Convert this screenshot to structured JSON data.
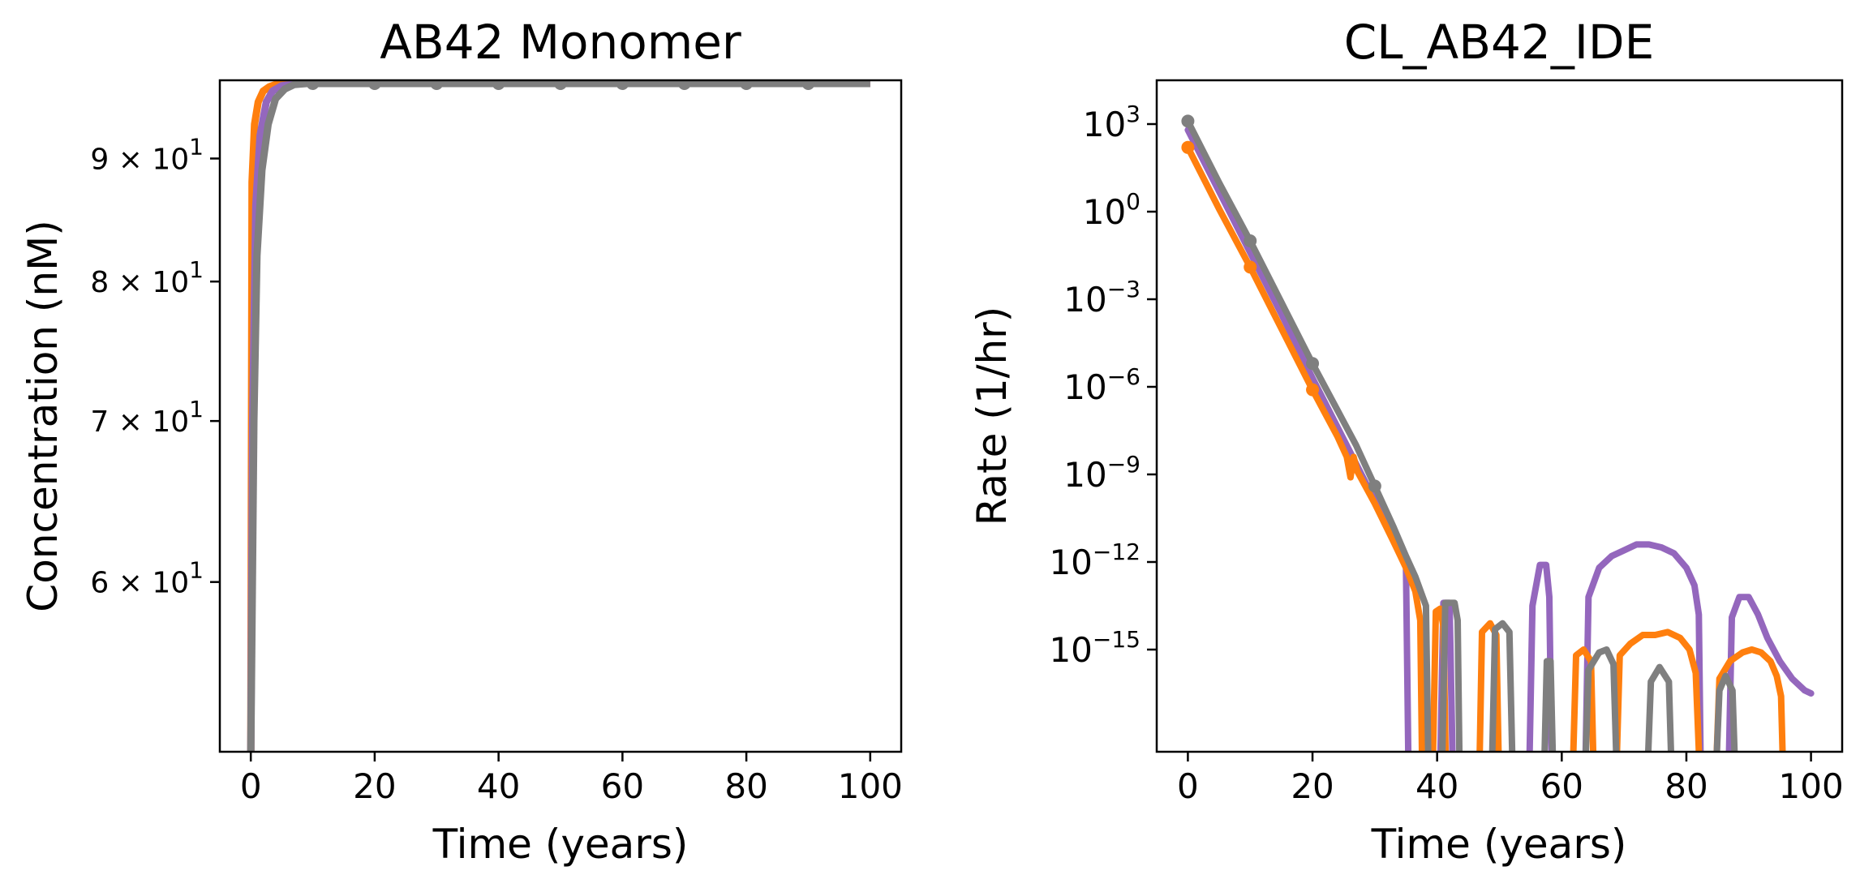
{
  "chart_data": [
    {
      "type": "line",
      "title": "AB42 Monomer",
      "xlabel": "Time (years)",
      "ylabel": "Concentration (nM)",
      "yscale": "log",
      "xlim": [
        -5,
        105
      ],
      "ylim": [
        51,
        97
      ],
      "grid": false,
      "xticks": [
        0,
        20,
        40,
        60,
        80,
        100
      ],
      "xtick_labels": [
        "0",
        "20",
        "40",
        "60",
        "80",
        "100"
      ],
      "yticks": [
        60,
        70,
        80,
        90
      ],
      "ytick_labels": [
        {
          "base": "6 × 10",
          "exp": "1"
        },
        {
          "base": "7 × 10",
          "exp": "1"
        },
        {
          "base": "8 × 10",
          "exp": "1"
        },
        {
          "base": "9 × 10",
          "exp": "1"
        }
      ],
      "series": [
        {
          "color": "#ff7f0e",
          "x": [
            0,
            0.2,
            0.6,
            1.2,
            2,
            3,
            4,
            5,
            6,
            100
          ],
          "y": [
            51,
            88,
            93,
            95,
            96,
            96.4,
            96.6,
            96.7,
            96.7,
            96.7
          ]
        },
        {
          "color": "#9467bd",
          "x": [
            0,
            0.3,
            0.8,
            1.5,
            2.5,
            3.5,
            5,
            6.5,
            8,
            100
          ],
          "y": [
            51,
            70,
            86,
            92,
            95,
            96,
            96.5,
            96.6,
            96.7,
            96.7
          ]
        },
        {
          "color": "#7f7f7f",
          "markers": [
            10,
            20,
            30,
            40,
            50,
            60,
            70,
            80,
            90
          ],
          "x": [
            0,
            0.5,
            1,
            1.8,
            2.8,
            4,
            5.5,
            7,
            9,
            100
          ],
          "y": [
            51,
            70,
            82,
            89,
            93,
            95.3,
            96.2,
            96.6,
            96.7,
            96.7
          ]
        }
      ]
    },
    {
      "type": "line",
      "title": "CL_AB42_IDE",
      "xlabel": "Time (years)",
      "ylabel": "Rate (1/hr)",
      "yscale": "log",
      "xlim": [
        -5,
        105
      ],
      "ylim_log10": [
        -18.5,
        4.5
      ],
      "grid": false,
      "xticks": [
        0,
        20,
        40,
        60,
        80,
        100
      ],
      "xtick_labels": [
        "0",
        "20",
        "40",
        "60",
        "80",
        "100"
      ],
      "yticks_log10": [
        3,
        0,
        -3,
        -6,
        -9,
        -12,
        -15
      ],
      "ytick_labels": [
        {
          "base": "10",
          "exp": "3"
        },
        {
          "base": "10",
          "exp": "0"
        },
        {
          "base": "10",
          "exp": "−3"
        },
        {
          "base": "10",
          "exp": "−6"
        },
        {
          "base": "10",
          "exp": "−9"
        },
        {
          "base": "10",
          "exp": "−12"
        },
        {
          "base": "10",
          "exp": "−15"
        }
      ],
      "series": [
        {
          "color": "#9467bd",
          "segments": [
            {
              "x": [
                0,
                5,
                10,
                15,
                20,
                25,
                30,
                33,
                35,
                35.4
              ],
              "log10y": [
                2.8,
                0.7,
                -1.4,
                -3.5,
                -5.7,
                -7.8,
                -9.9,
                -11.2,
                -12.2,
                -19
              ]
            },
            {
              "x": [
                40.5,
                41,
                42,
                42.5
              ],
              "log10y": [
                -19,
                -13.4,
                -13.4,
                -19
              ]
            },
            {
              "x": [
                54.8,
                55.3,
                56.5,
                57.5,
                58,
                58.4
              ],
              "log10y": [
                -19,
                -13.5,
                -12.1,
                -12.1,
                -13.2,
                -19
              ]
            },
            {
              "x": [
                63.8,
                64.3,
                66,
                68,
                70,
                72,
                74,
                76,
                78,
                80,
                81.3,
                82,
                82.3
              ],
              "log10y": [
                -19,
                -13.2,
                -12.2,
                -11.8,
                -11.6,
                -11.4,
                -11.4,
                -11.5,
                -11.7,
                -12.2,
                -12.8,
                -13.8,
                -19
              ]
            },
            {
              "x": [
                86.8,
                87.3,
                88.5,
                90,
                91.5,
                93,
                95,
                97,
                99,
                100
              ],
              "log10y": [
                -19,
                -13.9,
                -13.2,
                -13.2,
                -13.8,
                -14.6,
                -15.4,
                -16,
                -16.4,
                -16.5
              ]
            }
          ]
        },
        {
          "color": "#ff7f0e",
          "markers": [
            0,
            10,
            20
          ],
          "segments": [
            {
              "x": [
                0,
                5,
                10,
                15,
                20,
                24,
                25.5,
                26.1,
                26.6,
                27.2,
                30,
                33,
                35,
                36.5,
                37.3,
                37.6
              ],
              "log10y": [
                2.2,
                0.1,
                -1.9,
                -4,
                -6.1,
                -7.7,
                -8.4,
                -9.1,
                -8.4,
                -8.9,
                -10,
                -11.3,
                -12.2,
                -13,
                -14,
                -19
              ]
            },
            {
              "x": [
                39.3,
                39.8,
                40.5,
                41,
                41.4
              ],
              "log10y": [
                -19,
                -13.7,
                -13.6,
                -14.2,
                -19
              ]
            },
            {
              "x": [
                46.8,
                47.2,
                48.5,
                49.5,
                49.9
              ],
              "log10y": [
                -19,
                -14.4,
                -14.1,
                -14.5,
                -19
              ]
            },
            {
              "x": [
                61.8,
                62.3,
                63.5,
                64.7,
                65.1
              ],
              "log10y": [
                -19,
                -15.2,
                -15,
                -15.4,
                -19
              ]
            },
            {
              "x": [
                68.8,
                69.3,
                71,
                73,
                75,
                77,
                79,
                80.5,
                81.5,
                82.1
              ],
              "log10y": [
                -19,
                -15.2,
                -14.8,
                -14.5,
                -14.5,
                -14.4,
                -14.6,
                -15,
                -15.8,
                -19
              ]
            },
            {
              "x": [
                84.8,
                85.3,
                87,
                89,
                90.5,
                92,
                93.5,
                94.5,
                95.2,
                95.5
              ],
              "log10y": [
                -19,
                -16,
                -15.4,
                -15.1,
                -15,
                -15.1,
                -15.4,
                -15.9,
                -16.6,
                -19
              ]
            }
          ]
        },
        {
          "color": "#7f7f7f",
          "markers": [
            0,
            10,
            20,
            30
          ],
          "segments": [
            {
              "x": [
                0,
                5,
                10,
                15,
                20,
                25,
                27,
                30,
                33,
                35,
                36.5,
                38.2,
                38.6
              ],
              "log10y": [
                3.1,
                1,
                -1,
                -3.1,
                -5.2,
                -7.2,
                -8,
                -9.4,
                -10.8,
                -11.8,
                -12.5,
                -13.5,
                -19
              ]
            },
            {
              "x": [
                40.8,
                41.3,
                42.8,
                43.3,
                43.6
              ],
              "log10y": [
                -19,
                -13.4,
                -13.4,
                -14,
                -19
              ]
            },
            {
              "x": [
                48.8,
                49.3,
                50.5,
                51.6,
                52.1
              ],
              "log10y": [
                -19,
                -14.3,
                -14.1,
                -14.4,
                -19
              ]
            },
            {
              "x": [
                57.2,
                57.6,
                58.2,
                58.6
              ],
              "log10y": [
                -19,
                -15.4,
                -15.4,
                -19
              ]
            },
            {
              "x": [
                63.8,
                64.3,
                66,
                67.2,
                68.3,
                68.8
              ],
              "log10y": [
                -19,
                -15.7,
                -15.1,
                -15,
                -15.5,
                -19
              ]
            },
            {
              "x": [
                73.8,
                74.3,
                75.7,
                77.2,
                77.6
              ],
              "log10y": [
                -19,
                -16.1,
                -15.6,
                -16.1,
                -19
              ]
            },
            {
              "x": [
                84.8,
                85.3,
                86.3,
                87.4,
                87.8
              ],
              "log10y": [
                -19,
                -16.4,
                -15.9,
                -16.4,
                -19
              ]
            }
          ]
        }
      ]
    }
  ]
}
